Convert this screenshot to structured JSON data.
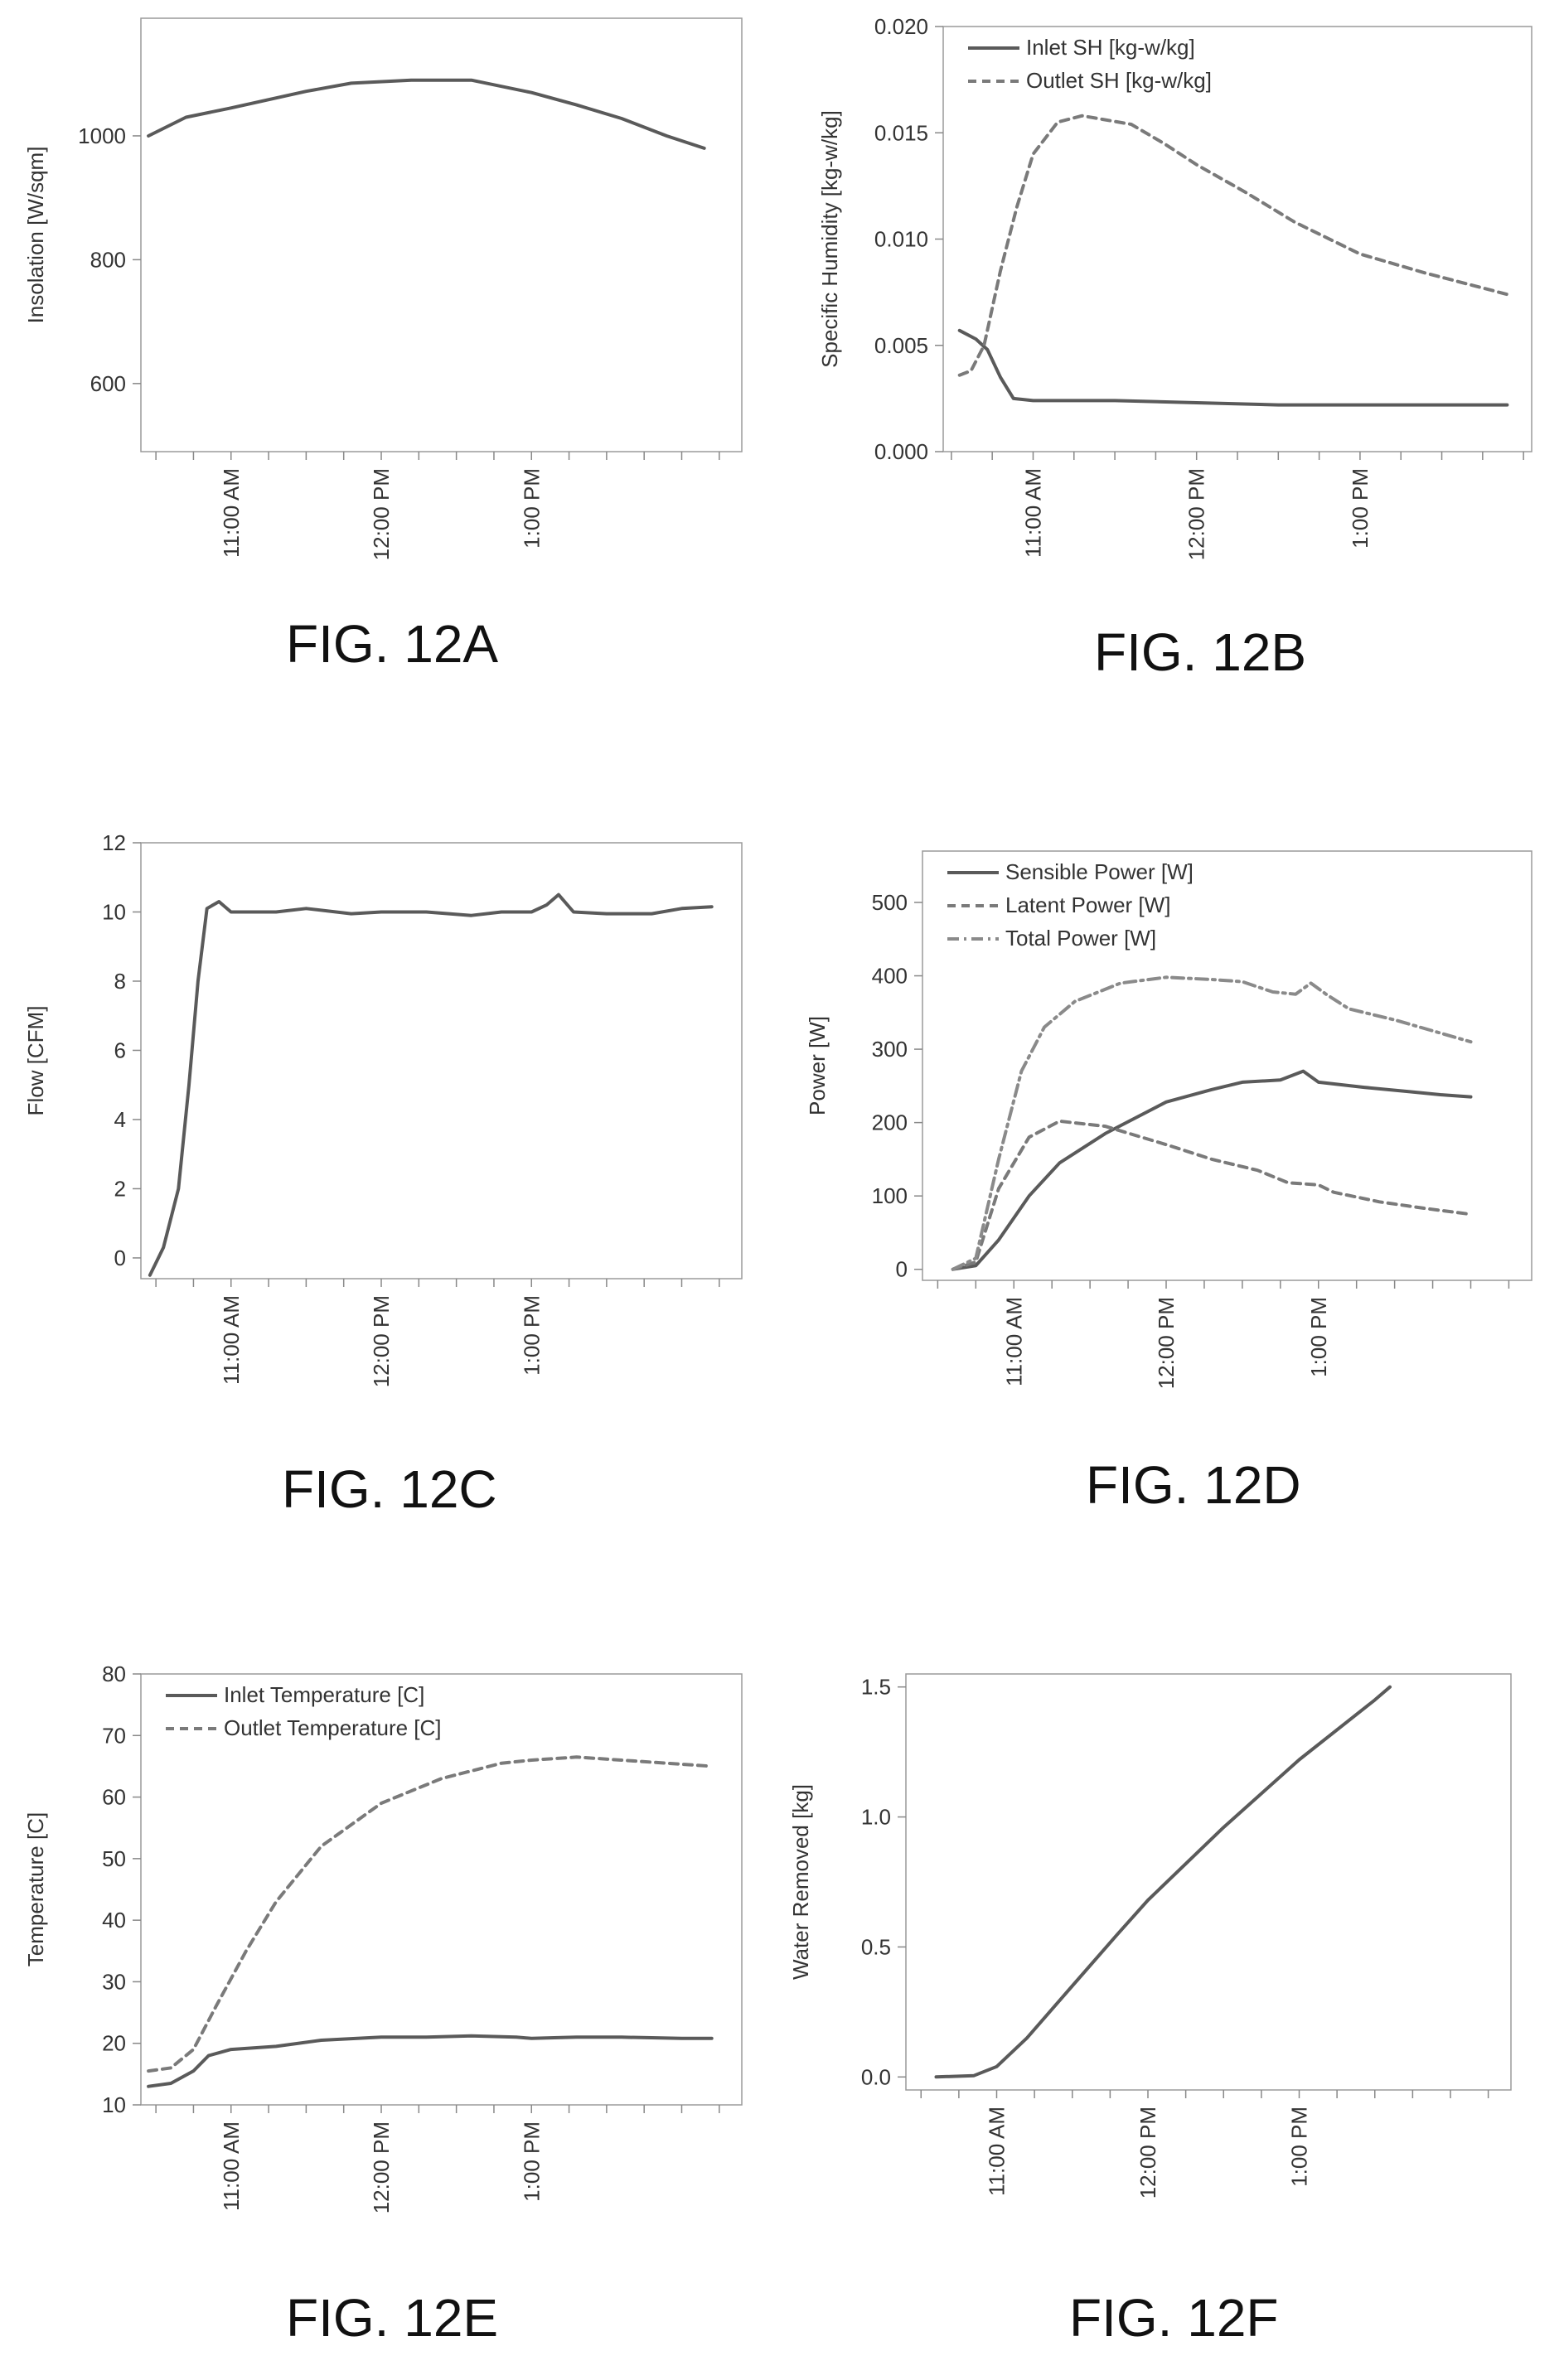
{
  "chart_data": [
    {
      "id": "12A",
      "type": "line",
      "ylabel": "Insolation [W/sqm]",
      "ylim": [
        490,
        1190
      ],
      "yticks": [
        600,
        800,
        1000
      ],
      "xlim": [
        10.4,
        14.4
      ],
      "xticks": [
        {
          "x": 11,
          "label": "11:00 AM"
        },
        {
          "x": 12,
          "label": "12:00 PM"
        },
        {
          "x": 13,
          "label": "1:00 PM"
        }
      ],
      "series": [
        {
          "style": "solid",
          "color": "#5a5a5a",
          "points": [
            [
              10.45,
              1000
            ],
            [
              10.7,
              1030
            ],
            [
              11,
              1045
            ],
            [
              11.5,
              1072
            ],
            [
              11.8,
              1085
            ],
            [
              12.2,
              1090
            ],
            [
              12.6,
              1090
            ],
            [
              13,
              1070
            ],
            [
              13.3,
              1050
            ],
            [
              13.6,
              1028
            ],
            [
              13.9,
              1000
            ],
            [
              14.15,
              980
            ]
          ]
        }
      ],
      "caption": "FIG. 12A"
    },
    {
      "id": "12B",
      "type": "line",
      "ylabel": "Specific Humidity [kg-w/kg]",
      "ylim": [
        0,
        0.02
      ],
      "yticks": [
        0.0,
        0.005,
        0.01,
        0.015,
        0.02
      ],
      "ytick_labels": [
        "0.000",
        "0.005",
        "0.010",
        "0.015",
        "0.020"
      ],
      "xlim": [
        10.45,
        14.05
      ],
      "xticks": [
        {
          "x": 11,
          "label": "11:00 AM"
        },
        {
          "x": 12,
          "label": "12:00 PM"
        },
        {
          "x": 13,
          "label": "1:00 PM"
        }
      ],
      "legend_position": "top-left",
      "series": [
        {
          "name": "Inlet SH [kg-w/kg]",
          "style": "solid",
          "color": "#5a5a5a",
          "points": [
            [
              10.55,
              0.0057
            ],
            [
              10.65,
              0.0053
            ],
            [
              10.72,
              0.0048
            ],
            [
              10.8,
              0.0035
            ],
            [
              10.88,
              0.0025
            ],
            [
              11,
              0.0024
            ],
            [
              11.5,
              0.0024
            ],
            [
              12,
              0.0023
            ],
            [
              12.5,
              0.0022
            ],
            [
              13,
              0.0022
            ],
            [
              13.5,
              0.0022
            ],
            [
              13.9,
              0.0022
            ]
          ]
        },
        {
          "name": "Outlet SH [kg-w/kg]",
          "style": "dashed",
          "color": "#7a7a7a",
          "points": [
            [
              10.55,
              0.0036
            ],
            [
              10.62,
              0.0038
            ],
            [
              10.7,
              0.005
            ],
            [
              10.8,
              0.0085
            ],
            [
              10.9,
              0.0115
            ],
            [
              11,
              0.014
            ],
            [
              11.15,
              0.0155
            ],
            [
              11.3,
              0.0158
            ],
            [
              11.6,
              0.0154
            ],
            [
              11.8,
              0.0145
            ],
            [
              12,
              0.0135
            ],
            [
              12.3,
              0.0122
            ],
            [
              12.6,
              0.0108
            ],
            [
              13,
              0.0093
            ],
            [
              13.4,
              0.0084
            ],
            [
              13.7,
              0.0078
            ],
            [
              13.9,
              0.0074
            ]
          ]
        }
      ],
      "caption": "FIG. 12B"
    },
    {
      "id": "12C",
      "type": "line",
      "ylabel": "Flow [CFM]",
      "ylim": [
        -0.6,
        12
      ],
      "yticks": [
        0,
        2,
        4,
        6,
        8,
        10,
        12
      ],
      "xlim": [
        10.4,
        14.4
      ],
      "xticks": [
        {
          "x": 11,
          "label": "11:00 AM"
        },
        {
          "x": 12,
          "label": "12:00 PM"
        },
        {
          "x": 13,
          "label": "1:00 PM"
        }
      ],
      "series": [
        {
          "style": "solid",
          "color": "#5a5a5a",
          "points": [
            [
              10.46,
              -0.5
            ],
            [
              10.55,
              0.3
            ],
            [
              10.65,
              2
            ],
            [
              10.72,
              5
            ],
            [
              10.78,
              8
            ],
            [
              10.84,
              10.1
            ],
            [
              10.92,
              10.3
            ],
            [
              11,
              10.0
            ],
            [
              11.3,
              10.0
            ],
            [
              11.5,
              10.1
            ],
            [
              11.8,
              9.95
            ],
            [
              12,
              10.0
            ],
            [
              12.3,
              10.0
            ],
            [
              12.6,
              9.9
            ],
            [
              12.8,
              10.0
            ],
            [
              13,
              10.0
            ],
            [
              13.1,
              10.2
            ],
            [
              13.18,
              10.5
            ],
            [
              13.28,
              10.0
            ],
            [
              13.5,
              9.95
            ],
            [
              13.8,
              9.95
            ],
            [
              14,
              10.1
            ],
            [
              14.2,
              10.15
            ]
          ]
        }
      ],
      "caption": "FIG. 12C"
    },
    {
      "id": "12D",
      "type": "line",
      "ylabel": "Power [W]",
      "ylim": [
        -15,
        570
      ],
      "yticks": [
        0,
        100,
        200,
        300,
        400,
        500
      ],
      "xlim": [
        10.4,
        14.4
      ],
      "xticks": [
        {
          "x": 11,
          "label": "11:00 AM"
        },
        {
          "x": 12,
          "label": "12:00 PM"
        },
        {
          "x": 13,
          "label": "1:00 PM"
        }
      ],
      "legend_position": "top-left",
      "series": [
        {
          "name": "Sensible Power [W]",
          "style": "solid",
          "color": "#5a5a5a",
          "points": [
            [
              10.6,
              0
            ],
            [
              10.75,
              5
            ],
            [
              10.9,
              40
            ],
            [
              11.1,
              100
            ],
            [
              11.3,
              145
            ],
            [
              11.6,
              185
            ],
            [
              12,
              228
            ],
            [
              12.3,
              245
            ],
            [
              12.5,
              255
            ],
            [
              12.75,
              258
            ],
            [
              12.9,
              270
            ],
            [
              13,
              255
            ],
            [
              13.3,
              248
            ],
            [
              13.6,
              242
            ],
            [
              13.8,
              238
            ],
            [
              14.0,
              235
            ]
          ]
        },
        {
          "name": "Latent Power [W]",
          "style": "dashed",
          "color": "#7a7a7a",
          "points": [
            [
              10.6,
              0
            ],
            [
              10.75,
              10
            ],
            [
              10.9,
              110
            ],
            [
              11.1,
              180
            ],
            [
              11.3,
              202
            ],
            [
              11.6,
              195
            ],
            [
              12,
              170
            ],
            [
              12.3,
              150
            ],
            [
              12.6,
              135
            ],
            [
              12.8,
              118
            ],
            [
              13,
              115
            ],
            [
              13.1,
              105
            ],
            [
              13.4,
              92
            ],
            [
              13.7,
              83
            ],
            [
              14.0,
              75
            ]
          ]
        },
        {
          "name": "Total Power [W]",
          "style": "dashdot",
          "color": "#8a8a8a",
          "points": [
            [
              10.6,
              0
            ],
            [
              10.75,
              15
            ],
            [
              10.9,
              150
            ],
            [
              11.05,
              270
            ],
            [
              11.2,
              330
            ],
            [
              11.4,
              365
            ],
            [
              11.7,
              390
            ],
            [
              12,
              398
            ],
            [
              12.3,
              395
            ],
            [
              12.5,
              392
            ],
            [
              12.7,
              378
            ],
            [
              12.85,
              375
            ],
            [
              12.95,
              390
            ],
            [
              13.05,
              375
            ],
            [
              13.2,
              355
            ],
            [
              13.5,
              340
            ],
            [
              13.8,
              322
            ],
            [
              14.0,
              310
            ]
          ]
        }
      ],
      "caption": "FIG. 12D"
    },
    {
      "id": "12E",
      "type": "line",
      "ylabel": "Temperature [C]",
      "ylim": [
        10,
        80
      ],
      "yticks": [
        10,
        20,
        30,
        40,
        50,
        60,
        70,
        80
      ],
      "xlim": [
        10.4,
        14.4
      ],
      "xticks": [
        {
          "x": 11,
          "label": "11:00 AM"
        },
        {
          "x": 12,
          "label": "12:00 PM"
        },
        {
          "x": 13,
          "label": "1:00 PM"
        }
      ],
      "legend_position": "top-left",
      "series": [
        {
          "name": "Inlet Temperature [C]",
          "style": "solid",
          "color": "#5a5a5a",
          "points": [
            [
              10.45,
              13
            ],
            [
              10.6,
              13.5
            ],
            [
              10.75,
              15.5
            ],
            [
              10.85,
              18
            ],
            [
              11,
              19
            ],
            [
              11.3,
              19.5
            ],
            [
              11.6,
              20.5
            ],
            [
              12,
              21
            ],
            [
              12.3,
              21
            ],
            [
              12.6,
              21.2
            ],
            [
              12.9,
              21
            ],
            [
              13,
              20.8
            ],
            [
              13.3,
              21
            ],
            [
              13.6,
              21
            ],
            [
              14,
              20.8
            ],
            [
              14.2,
              20.8
            ]
          ]
        },
        {
          "name": "Outlet Temperature [C]",
          "style": "dashed",
          "color": "#7a7a7a",
          "points": [
            [
              10.45,
              15.5
            ],
            [
              10.6,
              16
            ],
            [
              10.75,
              19
            ],
            [
              10.9,
              26
            ],
            [
              11.1,
              35
            ],
            [
              11.3,
              43
            ],
            [
              11.6,
              52
            ],
            [
              12,
              59
            ],
            [
              12.4,
              63
            ],
            [
              12.8,
              65.5
            ],
            [
              13.0,
              66
            ],
            [
              13.3,
              66.5
            ],
            [
              13.6,
              66
            ],
            [
              13.9,
              65.5
            ],
            [
              14.2,
              65
            ]
          ]
        }
      ],
      "caption": "FIG. 12E"
    },
    {
      "id": "12F",
      "type": "line",
      "ylabel": "Water Removed [kg]",
      "ylim": [
        -0.05,
        1.55
      ],
      "yticks": [
        0.0,
        0.5,
        1.0,
        1.5
      ],
      "ytick_labels": [
        "0.0",
        "0.5",
        "1.0",
        "1.5"
      ],
      "xlim": [
        10.4,
        14.4
      ],
      "xticks": [
        {
          "x": 11,
          "label": "11:00 AM"
        },
        {
          "x": 12,
          "label": "12:00 PM"
        },
        {
          "x": 13,
          "label": "1:00 PM"
        }
      ],
      "series": [
        {
          "style": "solid",
          "color": "#5a5a5a",
          "points": [
            [
              10.6,
              0
            ],
            [
              10.85,
              0.005
            ],
            [
              11,
              0.04
            ],
            [
              11.2,
              0.15
            ],
            [
              11.5,
              0.35
            ],
            [
              11.8,
              0.55
            ],
            [
              12,
              0.68
            ],
            [
              12.5,
              0.96
            ],
            [
              13,
              1.22
            ],
            [
              13.5,
              1.45
            ],
            [
              13.6,
              1.5
            ]
          ]
        }
      ],
      "caption": "FIG. 12F"
    }
  ]
}
